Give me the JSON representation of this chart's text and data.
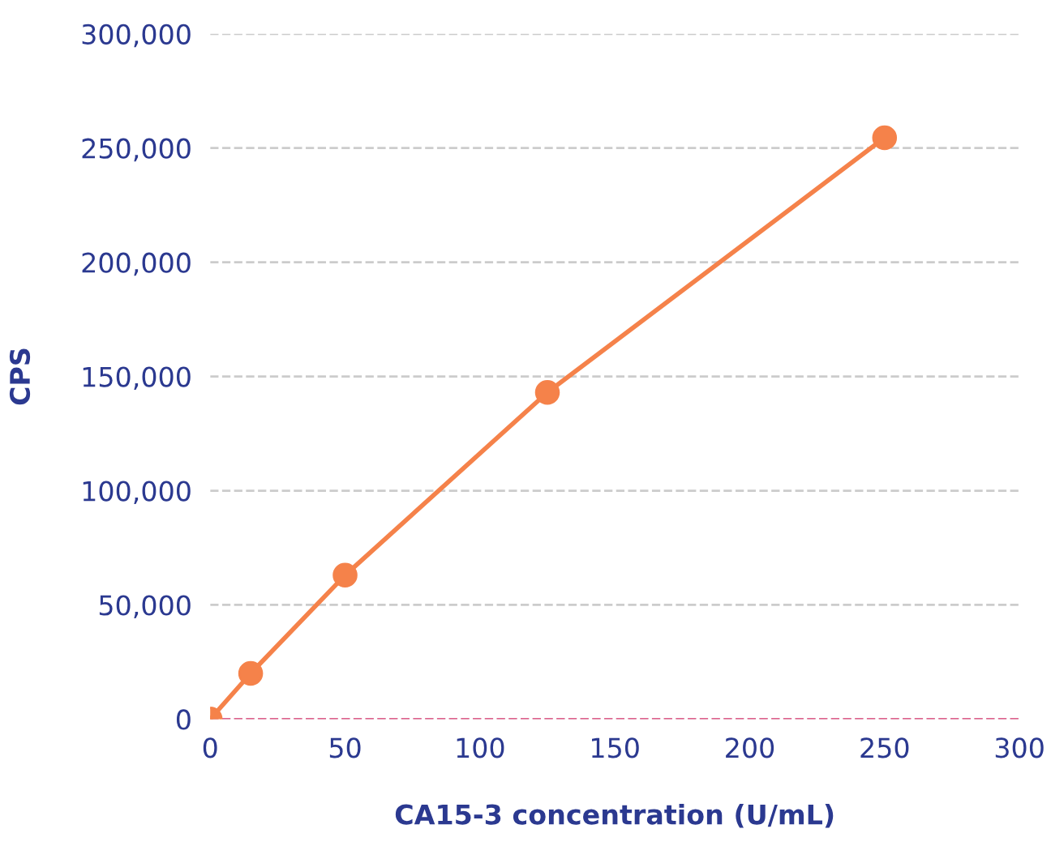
{
  "chart_data": {
    "type": "line",
    "xlabel": "CA15-3 concentration (U/mL)",
    "ylabel": "CPS",
    "x": [
      0,
      15,
      50,
      125,
      250
    ],
    "series": [
      {
        "color": "#f5824a",
        "values": [
          0,
          20000,
          63000,
          143000,
          254500
        ]
      }
    ],
    "xlim": [
      0,
      300
    ],
    "xticks": [
      0,
      50,
      100,
      150,
      200,
      250,
      300
    ],
    "ylim": [
      0,
      300000
    ],
    "yticks": [
      {
        "value": 0,
        "label": "0"
      },
      {
        "value": 50000,
        "label": "50,000"
      },
      {
        "value": 100000,
        "label": "100,000"
      },
      {
        "value": 150000,
        "label": "150,000"
      },
      {
        "value": 200000,
        "label": "200,000"
      },
      {
        "value": 250000,
        "label": "250,000"
      },
      {
        "value": 300000,
        "label": "300,000"
      }
    ],
    "grid": "y",
    "marker": "circle",
    "line_style": "solid",
    "legend": false,
    "ref_lines": [
      {
        "axis": "y",
        "value": 0,
        "color": "#e0608c",
        "line_style": "dashed"
      }
    ]
  }
}
